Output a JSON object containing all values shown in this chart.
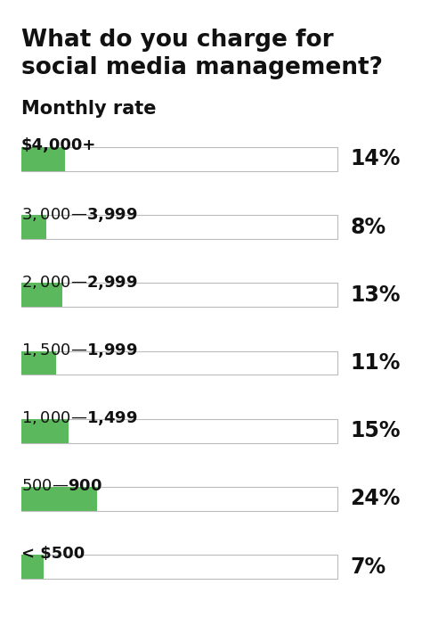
{
  "title_line1": "What do you charge for",
  "title_line2": "social media management?",
  "subtitle": "Monthly rate",
  "categories": [
    "$4,000+",
    "$3,000—$3,999",
    "$2,000—$2,999",
    "$1,500—$1,999",
    "$1,000—$1,499",
    "$500—$900",
    "< $500"
  ],
  "percentages": [
    14,
    8,
    13,
    11,
    15,
    24,
    7
  ],
  "labels": [
    "14%",
    "8%",
    "13%",
    "11%",
    "15%",
    "24%",
    "7%"
  ],
  "green_color": "#5cb85c",
  "bg_color": "#ffffff",
  "text_color": "#111111",
  "bar_border_color": "#bbbbbb",
  "title_fontsize": 19,
  "subtitle_fontsize": 15,
  "cat_fontsize": 13,
  "pct_fontsize": 17
}
